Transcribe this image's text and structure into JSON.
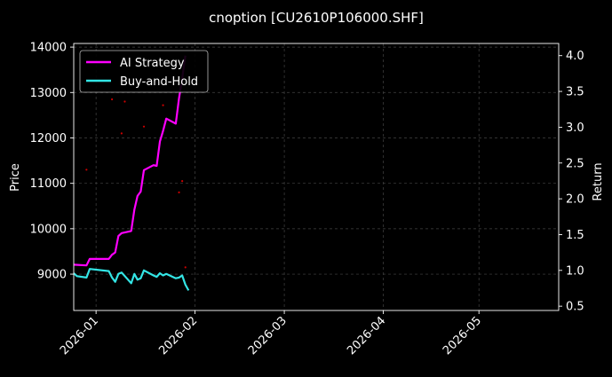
{
  "chart_data": {
    "type": "line",
    "title": "cnoption [CU2610P106000.SHF]",
    "xlabel": "",
    "ylabel_left": "Price",
    "ylabel_right": "Return",
    "x_range": [
      "2025-12-25",
      "2026-05-26"
    ],
    "x_ticks": [
      "2026-01",
      "2026-02",
      "2026-03",
      "2026-04",
      "2026-05"
    ],
    "y_left_range": [
      8200,
      14080
    ],
    "y_left_ticks": [
      "9000",
      "10000",
      "11000",
      "12000",
      "13000",
      "14000"
    ],
    "y_right_range": [
      0.44,
      4.17
    ],
    "y_right_ticks": [
      "0.5",
      "1.0",
      "1.5",
      "2.0",
      "2.5",
      "3.0",
      "3.5",
      "4.0"
    ],
    "grid": true,
    "legend_position": "top-left",
    "colors": {
      "background": "#000000",
      "ai_strategy": "#ff00ff",
      "buy_and_hold": "#33e5e5",
      "price_points": "#cc0000",
      "grid": "#444444"
    },
    "series": [
      {
        "name": "AI Strategy",
        "axis": "right",
        "x": [
          "2025-12-25",
          "2025-12-29",
          "2025-12-30",
          "2026-01-05",
          "2026-01-06",
          "2026-01-07",
          "2026-01-08",
          "2026-01-09",
          "2026-01-12",
          "2026-01-13",
          "2026-01-14",
          "2026-01-15",
          "2026-01-16",
          "2026-01-19",
          "2026-01-20",
          "2026-01-21",
          "2026-01-22",
          "2026-01-23",
          "2026-01-26",
          "2026-01-27",
          "2026-01-28",
          "2026-01-29"
        ],
        "values": [
          1.08,
          1.07,
          1.16,
          1.16,
          1.22,
          1.25,
          1.48,
          1.52,
          1.55,
          1.85,
          2.04,
          2.1,
          2.4,
          2.47,
          2.46,
          2.8,
          2.95,
          3.12,
          3.05,
          3.4,
          3.68,
          4.0
        ]
      },
      {
        "name": "Buy-and-Hold",
        "axis": "right",
        "x": [
          "2025-12-25",
          "2025-12-26",
          "2025-12-29",
          "2025-12-30",
          "2026-01-05",
          "2026-01-06",
          "2026-01-07",
          "2026-01-08",
          "2026-01-09",
          "2026-01-12",
          "2026-01-13",
          "2026-01-14",
          "2026-01-15",
          "2026-01-16",
          "2026-01-19",
          "2026-01-20",
          "2026-01-21",
          "2026-01-22",
          "2026-01-23",
          "2026-01-26",
          "2026-01-27",
          "2026-01-28",
          "2026-01-29",
          "2026-01-30"
        ],
        "values": [
          0.96,
          0.92,
          0.9,
          1.02,
          0.99,
          0.9,
          0.84,
          0.95,
          0.97,
          0.82,
          0.95,
          0.87,
          0.89,
          1.0,
          0.93,
          0.91,
          0.96,
          0.93,
          0.95,
          0.89,
          0.9,
          0.93,
          0.8,
          0.72
        ]
      }
    ],
    "price_points": {
      "name": "",
      "axis": "left",
      "x": [
        "2025-12-29",
        "2026-01-06",
        "2026-01-09",
        "2026-01-10",
        "2026-01-16",
        "2026-01-22",
        "2026-01-27",
        "2026-01-28",
        "2026-01-29"
      ],
      "values": [
        11300,
        12850,
        12100,
        12800,
        12250,
        12720,
        10800,
        11050,
        9150
      ]
    }
  }
}
